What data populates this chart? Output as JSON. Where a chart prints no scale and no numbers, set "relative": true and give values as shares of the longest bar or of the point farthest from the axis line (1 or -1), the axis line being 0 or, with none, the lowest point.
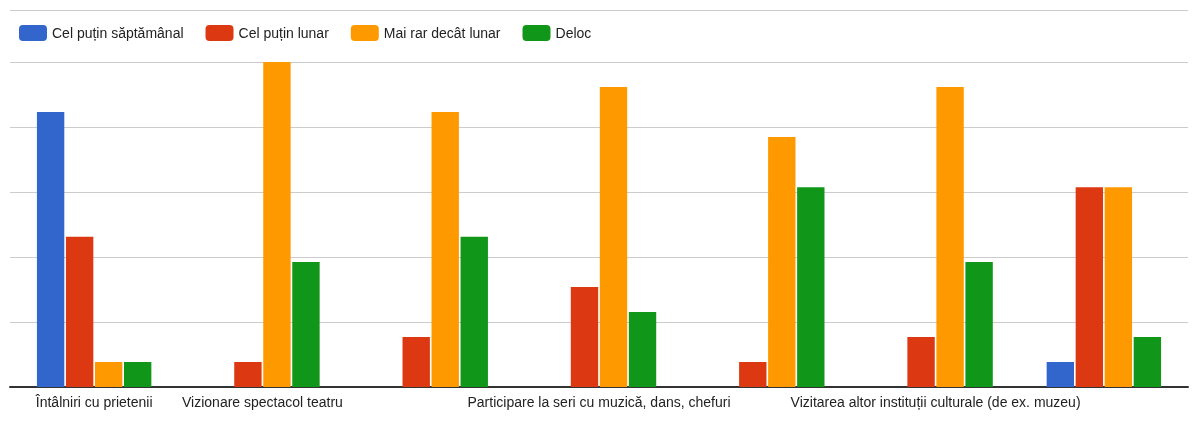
{
  "chart_data": {
    "type": "bar",
    "relative": true,
    "grid": "y",
    "legend": "top left",
    "categories": [
      "Întâlniri cu prietenii",
      "Vizionare spectacol teatru",
      null,
      "Participare la seri cu muzică, dans, chefuri",
      null,
      "Vizitarea altor instituții culturale (de ex. muzeu)",
      null
    ],
    "series": [
      {
        "name": "Cel puțin săptămânal",
        "color": "#3366cc",
        "values": [
          0.846,
          0,
          0,
          0,
          0,
          0,
          0.077
        ]
      },
      {
        "name": "Cel puțin lunar",
        "color": "#dc3912",
        "values": [
          0.462,
          0.077,
          0.154,
          0.308,
          0.077,
          0.154,
          0.615
        ]
      },
      {
        "name": "Mai rar decât lunar",
        "color": "#ff9900",
        "values": [
          0.077,
          1,
          0.846,
          0.923,
          0.769,
          0.923,
          0.615
        ]
      },
      {
        "name": "Deloc",
        "color": "#109618",
        "values": [
          0.077,
          0.385,
          0.462,
          0.231,
          0.615,
          0.385,
          0.154
        ]
      }
    ]
  }
}
